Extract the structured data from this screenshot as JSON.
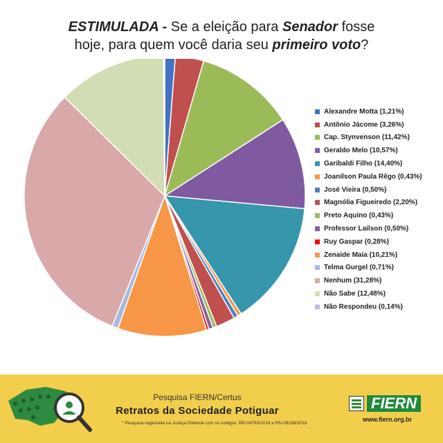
{
  "title": {
    "part1": "ESTIMULADA -",
    "part2": " Se a eleição para ",
    "part3": "Senador",
    "part4": " fosse",
    "part5": "hoje, para quem você daria seu ",
    "part6": "primeiro voto",
    "part7": "?"
  },
  "chart_data": {
    "type": "pie",
    "title": "ESTIMULADA - Se a eleição para Senador fosse hoje, para quem você daria seu primeiro voto?",
    "labels": [
      "Alexandre Motta (1,21%)",
      "Antônio Jácome (3,26%)",
      "Cap. Stynvenson (11,42%)",
      "Geraldo Melo (10,57%)",
      "Garibaldi Filho (14,40%)",
      "Joanilson Paula Rêgo (0,43%)",
      "José Vieira (0,50%)",
      "Magnólia Figueiredo (2,20%)",
      "Preto Aquino (0,43%)",
      "Professor Lailson (0,50%)",
      "Ruy Gaspar (0,28%)",
      "Zenaide Maia (10,21%)",
      "Telma Gurgel (0,71%)",
      "Nenhum (31,28%)",
      "Não Sabe (12,48%)",
      "Não Respondeu (0,14%)"
    ],
    "values": [
      1.21,
      3.26,
      11.42,
      10.57,
      14.4,
      0.43,
      0.5,
      2.2,
      0.43,
      0.5,
      0.28,
      10.21,
      0.71,
      31.28,
      12.48,
      0.14
    ],
    "colors": [
      "#4472c4",
      "#c0504d",
      "#9bbb59",
      "#7f5aa0",
      "#3596ac",
      "#f79646",
      "#4f81bd",
      "#c0504d",
      "#9bbb59",
      "#8064a2",
      "#ff0000",
      "#f79646",
      "#a7b9e0",
      "#d9a8a8",
      "#d2ddb3",
      "#c0b9dc"
    ],
    "legend_position": "right"
  },
  "footer": {
    "subtitle": "Pesquisa FIERN/Certus",
    "title": "Retratos da Sociedade Potiguar",
    "note": "* Pesquisa registrada na Justiça Eleitoral com os códigos: BR-04763/2018 e RN-08199/2018",
    "logo_text": "FIERN",
    "url": "www.fiern.org.br"
  }
}
